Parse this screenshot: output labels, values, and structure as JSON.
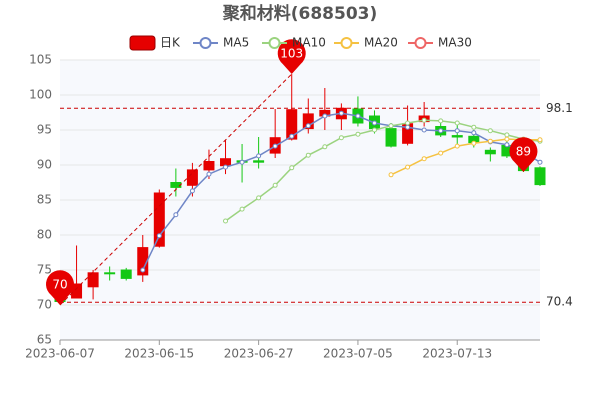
{
  "chart_data": {
    "type": "candlestick",
    "title": "聚和材料(688503)",
    "categories": [
      "2023-06-07",
      null,
      null,
      null,
      null,
      null,
      "2023-06-15",
      null,
      null,
      null,
      null,
      null,
      "2023-06-27",
      null,
      null,
      null,
      null,
      null,
      "2023-07-05",
      null,
      null,
      null,
      null,
      null,
      "2023-07-13",
      null,
      null,
      null,
      null,
      null
    ],
    "candle": {
      "name": "日K",
      "color_up": "#e60000",
      "color_down": "#14c814",
      "open": [
        70.9,
        71.0,
        72.6,
        74.6,
        75.0,
        74.3,
        78.4,
        87.5,
        87.1,
        89.3,
        89.9,
        90.6,
        90.6,
        91.7,
        93.7,
        95.2,
        97.0,
        96.6,
        98.0,
        97.0,
        95.2,
        93.1,
        96.2,
        95.5,
        94.2,
        94.1,
        92.1,
        92.8,
        91.5,
        89.6
      ],
      "close": [
        70.5,
        73.0,
        74.6,
        74.5,
        73.8,
        78.2,
        86.0,
        86.8,
        89.3,
        90.5,
        90.9,
        90.4,
        90.4,
        93.9,
        97.9,
        97.3,
        97.8,
        98.1,
        96.0,
        95.2,
        92.7,
        95.9,
        97.0,
        94.3,
        94.0,
        93.2,
        91.6,
        91.3,
        89.2,
        87.2
      ],
      "high": [
        71.3,
        78.5,
        75.0,
        75.5,
        75.3,
        80.0,
        86.5,
        89.5,
        90.3,
        92.2,
        93.5,
        93.0,
        94.0,
        98.0,
        103.0,
        99.5,
        101.0,
        98.8,
        99.8,
        97.8,
        96.0,
        98.5,
        99.0,
        96.0,
        96.0,
        95.0,
        92.5,
        93.5,
        94.0,
        89.8
      ],
      "low": [
        70.4,
        71.0,
        70.8,
        73.5,
        73.5,
        73.3,
        78.2,
        85.5,
        85.5,
        88.0,
        88.7,
        87.5,
        89.5,
        91.0,
        93.5,
        94.5,
        95.0,
        95.0,
        95.5,
        94.5,
        92.5,
        92.8,
        95.5,
        94.0,
        93.0,
        92.5,
        90.5,
        91.0,
        89.0,
        87.0
      ]
    },
    "series": [
      {
        "name": "MA5",
        "color": "#6f86c7",
        "values": [
          null,
          null,
          null,
          null,
          null,
          75.0,
          79.9,
          82.9,
          86.3,
          88.7,
          89.7,
          90.4,
          91.3,
          92.7,
          94.1,
          95.6,
          97.0,
          97.4,
          97.0,
          96.0,
          95.6,
          95.4,
          95.0,
          94.9,
          94.9,
          94.6,
          93.3,
          92.9,
          91.9,
          90.4
        ]
      },
      {
        "name": "MA10",
        "color": "#9bd37f",
        "values": [
          null,
          null,
          null,
          null,
          null,
          null,
          null,
          null,
          null,
          null,
          82.0,
          83.7,
          85.3,
          87.1,
          89.6,
          91.4,
          92.6,
          93.9,
          94.4,
          95.0,
          95.6,
          96.0,
          96.4,
          96.3,
          96.0,
          95.4,
          94.9,
          94.3,
          93.7,
          93.4
        ]
      },
      {
        "name": "MA20",
        "color": "#f5c242",
        "values": [
          null,
          null,
          null,
          null,
          null,
          null,
          null,
          null,
          null,
          null,
          null,
          null,
          null,
          null,
          null,
          null,
          null,
          null,
          null,
          null,
          88.6,
          89.7,
          90.9,
          91.7,
          92.7,
          93.1,
          93.4,
          93.7,
          93.6,
          93.6
        ]
      },
      {
        "name": "MA30",
        "color": "#ee6666",
        "values": [
          null,
          null,
          null,
          null,
          null,
          null,
          null,
          null,
          null,
          null,
          null,
          null,
          null,
          null,
          null,
          null,
          null,
          null,
          null,
          null,
          null,
          null,
          null,
          null,
          null,
          null,
          null,
          null,
          null,
          null
        ]
      }
    ],
    "max_line": 98.1,
    "min_line": 70.4,
    "pins": [
      {
        "value": 103
      },
      {
        "value": 70
      },
      {
        "value": 89
      }
    ],
    "ylim": [
      65,
      105
    ],
    "yticks": [
      65,
      70,
      75,
      80,
      85,
      90,
      95,
      100,
      105
    ],
    "grid": true
  }
}
